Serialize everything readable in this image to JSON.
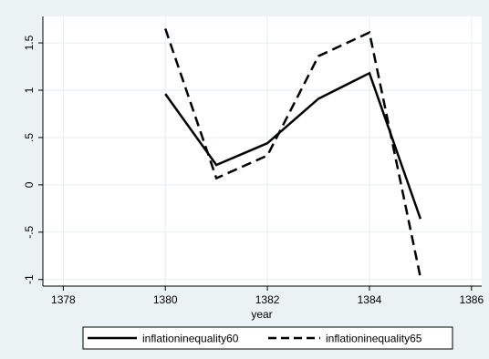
{
  "chart_data": {
    "type": "line",
    "xlabel": "year",
    "ylabel": "",
    "xlim": [
      1377.6,
      1386.2
    ],
    "ylim": [
      -1.07,
      1.78
    ],
    "x_ticks": [
      {
        "value": 1378,
        "label": "1378"
      },
      {
        "value": 1380,
        "label": "1380"
      },
      {
        "value": 1382,
        "label": "1382"
      },
      {
        "value": 1384,
        "label": "1384"
      },
      {
        "value": 1386,
        "label": "1386"
      }
    ],
    "y_ticks": [
      {
        "value": -1,
        "label": "-1"
      },
      {
        "value": -0.5,
        "label": "-.5"
      },
      {
        "value": 0,
        "label": "0"
      },
      {
        "value": 0.5,
        "label": ".5"
      },
      {
        "value": 1,
        "label": "1"
      },
      {
        "value": 1.5,
        "label": "1.5"
      }
    ],
    "grid": true,
    "legend_position": "bottom",
    "x": [
      1380,
      1381,
      1382,
      1383,
      1384,
      1385
    ],
    "series": [
      {
        "name": "inflationinequality60",
        "style": "solid",
        "color": "#000000",
        "values": [
          0.96,
          0.21,
          0.44,
          0.91,
          1.18,
          -0.36
        ]
      },
      {
        "name": "inflationinequality65",
        "style": "dashed",
        "color": "#000000",
        "values": [
          1.65,
          0.07,
          0.31,
          1.36,
          1.61,
          -0.98
        ]
      }
    ]
  },
  "colors": {
    "background": "#eaf2f3",
    "plot_area": "#ffffff",
    "grid": "#e6eef0",
    "axis": "#000000"
  }
}
